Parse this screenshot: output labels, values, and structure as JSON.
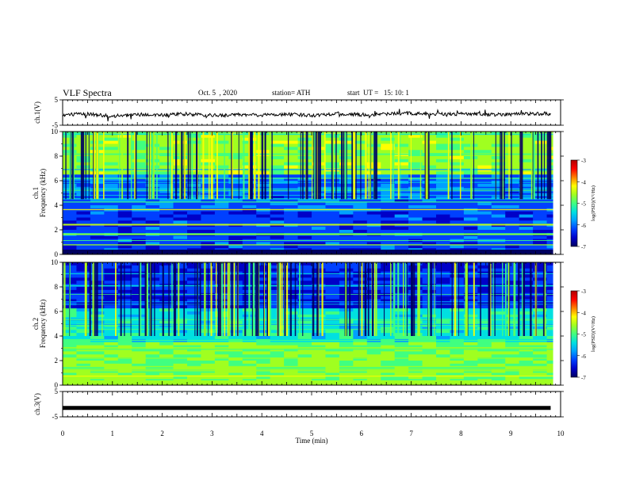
{
  "header": {
    "title": "VLF Spectra",
    "date": "Oct. 5  , 2020",
    "station": "station= ATH",
    "start_ut": "start  UT =   15: 10: 1"
  },
  "colors": {
    "colormap": [
      "#000060",
      "#0000c8",
      "#0040ff",
      "#00a0ff",
      "#00e0e0",
      "#40ff80",
      "#a0ff20",
      "#ffff00",
      "#ff8000",
      "#ff0000",
      "#b00000"
    ]
  },
  "chart_data": [
    {
      "type": "line",
      "panel": "ch1-waveform",
      "ylabel": "ch.1(V)",
      "ylim": [
        -5,
        5
      ],
      "yticks": [
        "5",
        "-5"
      ],
      "xlim": [
        0,
        10
      ],
      "series": [
        {
          "x": [
            0,
            0.5,
            1,
            1.5,
            2,
            2.5,
            3,
            3.5,
            4,
            4.5,
            5,
            5.5,
            6,
            6.5,
            7,
            7.5,
            8,
            8.5,
            9,
            9.5,
            9.8
          ],
          "values": [
            -1,
            -0.5,
            -1.5,
            -0.8,
            -1,
            -0.6,
            -1.2,
            -0.9,
            -1,
            -0.7,
            -1.1,
            -0.4,
            -0.9,
            -0.6,
            -0.3,
            -0.8,
            -0.5,
            -0.9,
            -0.6,
            -0.4,
            -0.5
          ]
        }
      ]
    },
    {
      "type": "heatmap",
      "panel": "ch1-spectrogram",
      "ylabel": "Frequency (kHz)",
      "channel_label": "ch.1",
      "ylim": [
        0,
        10
      ],
      "yticks": [
        "0",
        "2",
        "4",
        "6",
        "8",
        "10"
      ],
      "xlim": [
        0,
        10
      ],
      "colorbar": {
        "range": [
          -7,
          -3
        ],
        "ticks": [
          "-3",
          "-4",
          "-5",
          "-6",
          "-7"
        ],
        "label": "log(PSD)(V²/Hz)"
      }
    },
    {
      "type": "heatmap",
      "panel": "ch2-spectrogram",
      "ylabel": "Frequency (kHz)",
      "channel_label": "ch.2",
      "ylim": [
        0,
        10
      ],
      "yticks": [
        "0",
        "2",
        "4",
        "6",
        "8",
        "10"
      ],
      "xlim": [
        0,
        10
      ],
      "colorbar": {
        "range": [
          -7,
          -3
        ],
        "ticks": [
          "-3",
          "-4",
          "-5",
          "-6",
          "-7"
        ],
        "label": "log(PSD)(V²/Hz)"
      }
    },
    {
      "type": "line",
      "panel": "ch3-waveform",
      "ylabel": "ch.3(V)",
      "ylim": [
        -5,
        5
      ],
      "yticks": [
        "5",
        "-5"
      ],
      "xlim": [
        0,
        10
      ],
      "xlabel": "Time (min)",
      "xticks": [
        "0",
        "1",
        "2",
        "3",
        "4",
        "5",
        "6",
        "7",
        "8",
        "9",
        "10"
      ],
      "series": [
        {
          "x": [
            0,
            9.8
          ],
          "values": [
            -1.5,
            -1.5
          ]
        }
      ]
    }
  ]
}
